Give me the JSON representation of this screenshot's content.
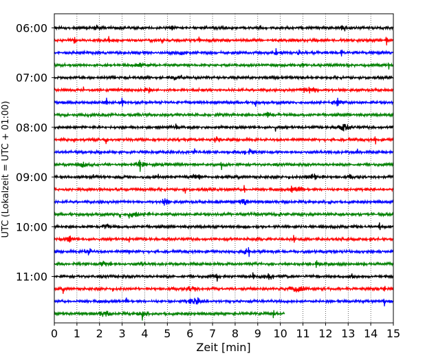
{
  "chart_data": {
    "type": "line",
    "subtype": "helicorder",
    "xlabel": "Zeit  [min]",
    "ylabel": "UTC (Lokalzeit = UTC + 01:00)",
    "xlim": [
      0,
      15
    ],
    "x_ticks": [
      "0",
      "1",
      "2",
      "3",
      "4",
      "5",
      "6",
      "7",
      "8",
      "9",
      "10",
      "11",
      "12",
      "13",
      "14",
      "15"
    ],
    "y_ticks": [
      "06:00",
      "07:00",
      "08:00",
      "09:00",
      "10:00",
      "11:00"
    ],
    "row_minutes": 15,
    "grid": "vertical-dotted",
    "color_cycle": [
      "#000000",
      "#ff0000",
      "#0000ff",
      "#008000"
    ],
    "rows": [
      {
        "start": "06:00",
        "end_min": 15,
        "spikes": [
          5.2,
          9.1,
          14.5
        ],
        "bursts": [
          [
            1.9,
            0.2
          ],
          [
            12.8,
            0.2
          ]
        ]
      },
      {
        "start": "06:15",
        "end_min": 15,
        "spikes": [
          2.4,
          4.8,
          14.7
        ],
        "bursts": [
          [
            0.9,
            0.1
          ],
          [
            6.4,
            0.1
          ]
        ]
      },
      {
        "start": "06:30",
        "end_min": 15,
        "spikes": [
          5.7,
          9.8,
          10.8,
          12.7
        ],
        "bursts": [
          [
            5.7,
            0.2
          ]
        ]
      },
      {
        "start": "06:45",
        "end_min": 15,
        "spikes": [
          5.2,
          11.0,
          14.8
        ],
        "bursts": [
          [
            3.8,
            0.2
          ]
        ]
      },
      {
        "start": "07:00",
        "end_min": 15,
        "spikes": [
          9.1,
          5.6
        ],
        "bursts": [
          [
            5.3,
            0.2
          ]
        ]
      },
      {
        "start": "07:15",
        "end_min": 15,
        "spikes": [
          1.3,
          4.2
        ],
        "bursts": [
          [
            11.3,
            0.5
          ],
          [
            4.1,
            0.2
          ]
        ]
      },
      {
        "start": "07:30",
        "end_min": 15,
        "spikes": [
          2.3,
          3.0,
          8.9,
          12.5
        ],
        "bursts": [
          [
            12.5,
            0.3
          ]
        ]
      },
      {
        "start": "07:45",
        "end_min": 15,
        "spikes": [],
        "bursts": [
          [
            9.5,
            0.2
          ]
        ]
      },
      {
        "start": "08:00",
        "end_min": 15,
        "spikes": [
          5.4,
          9.8
        ],
        "bursts": [
          [
            12.8,
            0.5
          ]
        ]
      },
      {
        "start": "08:15",
        "end_min": 15,
        "spikes": [
          0.9,
          2.3,
          7.2,
          14.2
        ],
        "bursts": [
          [
            7.2,
            0.2
          ]
        ]
      },
      {
        "start": "08:30",
        "end_min": 15,
        "spikes": [
          1.3,
          6.2,
          8.4,
          13.4
        ],
        "bursts": [
          [
            8.6,
            0.3
          ]
        ]
      },
      {
        "start": "08:45",
        "end_min": 15,
        "spikes": [
          3.8,
          7.4
        ],
        "bursts": [
          [
            1.2,
            0.3
          ],
          [
            3.8,
            0.3
          ]
        ]
      },
      {
        "start": "09:00",
        "end_min": 15,
        "spikes": [
          1.7,
          2.2,
          4.6,
          10.4,
          13.1
        ],
        "bursts": [
          [
            6.3,
            0.3
          ],
          [
            11.5,
            0.5
          ]
        ]
      },
      {
        "start": "09:15",
        "end_min": 15,
        "spikes": [
          5.8,
          8.4,
          10.5
        ],
        "bursts": [
          [
            10.8,
            0.3
          ]
        ]
      },
      {
        "start": "09:30",
        "end_min": 15,
        "spikes": [
          2.1,
          7.2,
          8.4,
          12.2
        ],
        "bursts": [
          [
            4.9,
            0.3
          ],
          [
            8.4,
            0.3
          ]
        ]
      },
      {
        "start": "09:45",
        "end_min": 15,
        "spikes": [
          2.9,
          3.3,
          4.2,
          10.0
        ],
        "bursts": [
          [
            3.5,
            0.3
          ]
        ]
      },
      {
        "start": "10:00",
        "end_min": 15,
        "spikes": [
          2.3,
          8.4,
          9.8,
          14.4
        ],
        "bursts": [
          [
            2.3,
            0.2
          ]
        ]
      },
      {
        "start": "10:15",
        "end_min": 15,
        "spikes": [
          0.7,
          3.3,
          10.6,
          14.0
        ],
        "bursts": [
          [
            0.7,
            0.2
          ]
        ]
      },
      {
        "start": "10:30",
        "end_min": 15,
        "spikes": [
          3.3,
          8.6
        ],
        "bursts": [
          [
            1.5,
            0.3
          ],
          [
            8.5,
            0.2
          ]
        ]
      },
      {
        "start": "10:45",
        "end_min": 15,
        "spikes": [
          2.5,
          3.9,
          11.6,
          13.7
        ],
        "bursts": [
          [
            2.2,
            0.3
          ]
        ]
      },
      {
        "start": "11:00",
        "end_min": 15,
        "spikes": [
          7.2,
          8.8,
          9.5,
          13.2
        ],
        "bursts": [
          [
            9.5,
            0.3
          ]
        ]
      },
      {
        "start": "11:15",
        "end_min": 15,
        "spikes": [
          0.4,
          2.6,
          14.6
        ],
        "bursts": [
          [
            6.1,
            0.3
          ],
          [
            10.7,
            0.5
          ]
        ]
      },
      {
        "start": "11:30",
        "end_min": 15,
        "spikes": [
          3.2,
          14.6
        ],
        "bursts": [
          [
            6.3,
            0.6
          ]
        ]
      },
      {
        "start": "11:45",
        "end_min": 10.2,
        "spikes": [
          3.9,
          9.7
        ],
        "bursts": [
          [
            2.2,
            0.3
          ],
          [
            3.9,
            0.3
          ]
        ]
      }
    ]
  }
}
